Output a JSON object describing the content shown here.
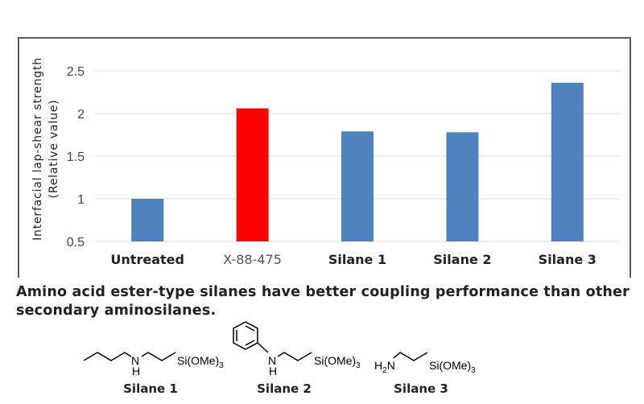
{
  "chart_data": {
    "type": "bar",
    "title": "",
    "xlabel": "",
    "ylabel": "Interfacial lap-shear strength",
    "ylabel2": "(Relative value)",
    "categories": [
      "Untreated",
      "X-88-475",
      "Silane 1",
      "Silane 2",
      "Silane 3"
    ],
    "values": [
      1.0,
      2.06,
      1.79,
      1.78,
      2.36
    ],
    "colors": [
      "#4f81bd",
      "#ff0000",
      "#4f81bd",
      "#4f81bd",
      "#4f81bd"
    ],
    "ylim": [
      0.5,
      2.5
    ],
    "yticks": [
      "0.5",
      "1",
      "1.5",
      "2",
      "2.5"
    ],
    "grid": true
  },
  "caption": "Amino acid ester-type silanes have better coupling performance than other secondary aminosilanes.",
  "structures": [
    {
      "label": "Silane 1",
      "amine": "N",
      "h": "H",
      "si": "Si(OMe)",
      "sub": "3"
    },
    {
      "label": "Silane 2",
      "amine": "N",
      "h": "H",
      "si": "Si(OMe)",
      "sub": "3"
    },
    {
      "label": "Silane 3",
      "amine": "H",
      "amine_sub": "2",
      "amine_n": "N",
      "si": "Si(OMe)",
      "sub": "3"
    }
  ]
}
